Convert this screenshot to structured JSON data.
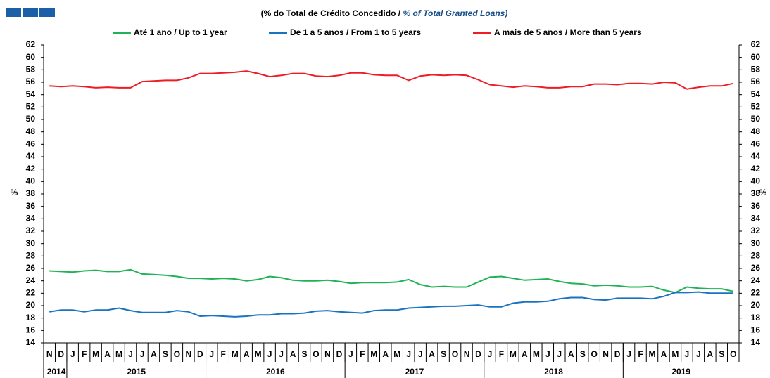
{
  "chart_data": {
    "type": "line",
    "title": "(% do Total de Crédito Concedido  /",
    "title_en": "% of Total Granted Loans)",
    "y_label": "%",
    "y2_label": "%",
    "categories": [
      "N",
      "D",
      "J",
      "F",
      "M",
      "A",
      "M",
      "J",
      "J",
      "A",
      "S",
      "O",
      "N",
      "D",
      "J",
      "F",
      "M",
      "A",
      "M",
      "J",
      "J",
      "A",
      "S",
      "O",
      "N",
      "D",
      "J",
      "F",
      "M",
      "A",
      "M",
      "J",
      "J",
      "A",
      "S",
      "O",
      "N",
      "D",
      "J",
      "F",
      "M",
      "A",
      "M",
      "J",
      "J",
      "A",
      "S",
      "O",
      "N",
      "D",
      "J",
      "F",
      "M",
      "A",
      "M",
      "J",
      "J",
      "A",
      "S",
      "O"
    ],
    "year_groups": [
      {
        "label": "2014",
        "months": 2
      },
      {
        "label": "2015",
        "months": 12
      },
      {
        "label": "2016",
        "months": 12
      },
      {
        "label": "2017",
        "months": 12
      },
      {
        "label": "2018",
        "months": 12
      },
      {
        "label": "2019",
        "months": 10
      }
    ],
    "series": [
      {
        "name": "Até 1 ano / Up to 1 year",
        "color": "#1fb256",
        "values": [
          25.6,
          25.5,
          25.4,
          25.6,
          25.7,
          25.5,
          25.5,
          25.8,
          25.1,
          25.0,
          24.9,
          24.7,
          24.4,
          24.4,
          24.3,
          24.4,
          24.3,
          24.0,
          24.2,
          24.7,
          24.5,
          24.1,
          24.0,
          24.0,
          24.1,
          23.9,
          23.6,
          23.7,
          23.7,
          23.7,
          23.8,
          24.2,
          23.4,
          23.0,
          23.1,
          23.0,
          23.0,
          23.8,
          24.6,
          24.7,
          24.4,
          24.1,
          24.2,
          24.3,
          23.9,
          23.6,
          23.5,
          23.2,
          23.3,
          23.2,
          23.0,
          23.0,
          23.1,
          22.5,
          22.1,
          23.0,
          22.8,
          22.7,
          22.7,
          22.3
        ]
      },
      {
        "name": "De 1 a 5 anos / From 1 to 5 years",
        "color": "#1a73c0",
        "values": [
          19.0,
          19.3,
          19.3,
          19.0,
          19.3,
          19.3,
          19.6,
          19.2,
          18.9,
          18.9,
          18.9,
          19.2,
          19.0,
          18.3,
          18.4,
          18.3,
          18.2,
          18.3,
          18.5,
          18.5,
          18.7,
          18.7,
          18.8,
          19.1,
          19.2,
          19.0,
          18.9,
          18.8,
          19.2,
          19.3,
          19.3,
          19.6,
          19.7,
          19.8,
          19.9,
          19.9,
          20.0,
          20.1,
          19.8,
          19.8,
          20.4,
          20.6,
          20.6,
          20.7,
          21.1,
          21.3,
          21.3,
          21.0,
          20.9,
          21.2,
          21.2,
          21.2,
          21.1,
          21.5,
          22.1,
          22.1,
          22.2,
          22.0,
          22.0,
          22.0
        ]
      },
      {
        "name": "A mais de 5 anos / More than 5 years",
        "color": "#ee1c25",
        "values": [
          55.4,
          55.3,
          55.4,
          55.3,
          55.1,
          55.2,
          55.1,
          55.1,
          56.1,
          56.2,
          56.3,
          56.3,
          56.7,
          57.4,
          57.4,
          57.5,
          57.6,
          57.8,
          57.4,
          56.9,
          57.1,
          57.4,
          57.4,
          57.0,
          56.9,
          57.1,
          57.5,
          57.5,
          57.2,
          57.1,
          57.1,
          56.3,
          57.0,
          57.2,
          57.1,
          57.2,
          57.1,
          56.4,
          55.6,
          55.4,
          55.2,
          55.4,
          55.3,
          55.1,
          55.1,
          55.3,
          55.3,
          55.7,
          55.7,
          55.6,
          55.8,
          55.8,
          55.7,
          56.0,
          55.9,
          54.9,
          55.2,
          55.4,
          55.4,
          55.8
        ]
      }
    ],
    "ylim": [
      14,
      62
    ],
    "yticks": [
      14,
      16,
      18,
      20,
      22,
      24,
      26,
      28,
      30,
      32,
      34,
      36,
      38,
      40,
      42,
      44,
      46,
      48,
      50,
      52,
      54,
      56,
      58,
      60,
      62
    ],
    "y2lim": [
      14,
      62
    ],
    "y2ticks": [
      14,
      16,
      18,
      20,
      22,
      24,
      26,
      28,
      30,
      32,
      34,
      36,
      38,
      40,
      42,
      44,
      46,
      48,
      50,
      52,
      54,
      56,
      58,
      60,
      62
    ],
    "grid": false
  }
}
